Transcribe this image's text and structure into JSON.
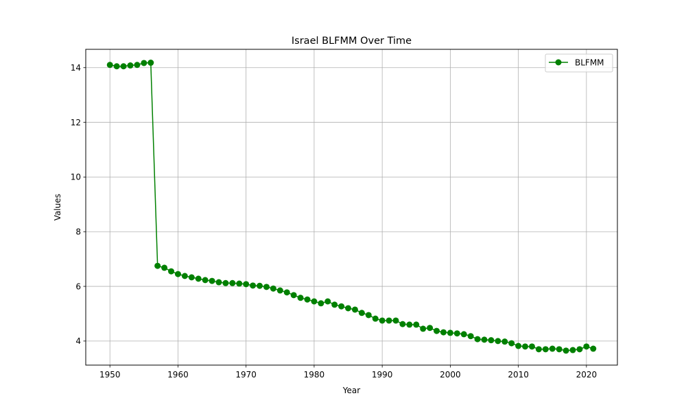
{
  "chart_data": {
    "type": "line",
    "title": "Israel BLFMM Over Time",
    "xlabel": "Year",
    "ylabel": "Values",
    "xlim": [
      1946.45,
      2024.55
    ],
    "ylim": [
      3.12,
      14.67
    ],
    "xticks": [
      1950,
      1960,
      1970,
      1980,
      1990,
      2000,
      2010,
      2020
    ],
    "yticks": [
      4,
      6,
      8,
      10,
      12,
      14
    ],
    "grid": true,
    "legend_position": "top-right",
    "line_color": "#008000",
    "x": [
      1950,
      1951,
      1952,
      1953,
      1954,
      1955,
      1956,
      1957,
      1958,
      1959,
      1960,
      1961,
      1962,
      1963,
      1964,
      1965,
      1966,
      1967,
      1968,
      1969,
      1970,
      1971,
      1972,
      1973,
      1974,
      1975,
      1976,
      1977,
      1978,
      1979,
      1980,
      1981,
      1982,
      1983,
      1984,
      1985,
      1986,
      1987,
      1988,
      1989,
      1990,
      1991,
      1992,
      1993,
      1994,
      1995,
      1996,
      1997,
      1998,
      1999,
      2000,
      2001,
      2002,
      2003,
      2004,
      2005,
      2006,
      2007,
      2008,
      2009,
      2010,
      2011,
      2012,
      2013,
      2014,
      2015,
      2016,
      2017,
      2018,
      2019,
      2020,
      2021
    ],
    "series": [
      {
        "name": "BLFMM",
        "values": [
          14.1,
          14.05,
          14.05,
          14.08,
          14.1,
          14.17,
          14.18,
          6.75,
          6.68,
          6.55,
          6.45,
          6.38,
          6.33,
          6.28,
          6.23,
          6.2,
          6.15,
          6.12,
          6.12,
          6.1,
          6.08,
          6.03,
          6.02,
          5.98,
          5.92,
          5.85,
          5.78,
          5.68,
          5.58,
          5.52,
          5.45,
          5.38,
          5.45,
          5.33,
          5.27,
          5.2,
          5.15,
          5.03,
          4.95,
          4.82,
          4.75,
          4.75,
          4.75,
          4.62,
          4.6,
          4.6,
          4.45,
          4.48,
          4.37,
          4.32,
          4.3,
          4.28,
          4.25,
          4.18,
          4.07,
          4.05,
          4.03,
          4.0,
          3.98,
          3.92,
          3.82,
          3.8,
          3.8,
          3.7,
          3.7,
          3.72,
          3.7,
          3.65,
          3.67,
          3.7,
          3.8,
          3.72
        ]
      }
    ]
  }
}
